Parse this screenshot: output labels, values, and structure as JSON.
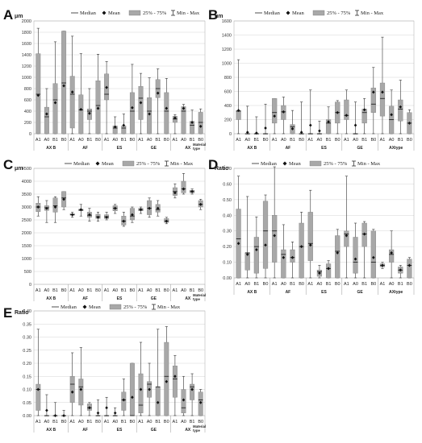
{
  "legend": {
    "median": "Median",
    "mean": "Mean",
    "iqr": "25% - 75%",
    "minmax": "Min - Max"
  },
  "chart_data": [
    {
      "id": "A",
      "label": "A",
      "type": "boxplot",
      "ylabel": "μm",
      "ylim": [
        0,
        2000
      ],
      "yticks": [
        0,
        200,
        400,
        600,
        800,
        1000,
        1200,
        1400,
        1600,
        1800,
        2000
      ],
      "tick_decimals": 0,
      "categories": [
        "A1",
        "A0",
        "B1",
        "B0",
        "A1",
        "A0",
        "B1",
        "B0",
        "A1",
        "A0",
        "B1",
        "B0",
        "A1",
        "A0",
        "B1",
        "B0",
        "A1",
        "A0",
        "B1",
        "B0"
      ],
      "groups": [
        "AX B",
        "AF",
        "ES",
        "GE",
        "AX"
      ],
      "group_extra": "Material type",
      "boxes": [
        {
          "min": 0,
          "q1": 0,
          "median": 700,
          "q3": 1420,
          "max": 1870,
          "mean": 680
        },
        {
          "min": 0,
          "q1": 0,
          "median": 300,
          "q3": 470,
          "max": 800,
          "mean": 350
        },
        {
          "min": 0,
          "q1": 0,
          "median": 600,
          "q3": 890,
          "max": 1630,
          "mean": 550
        },
        {
          "min": 0,
          "q1": 0,
          "median": 900,
          "q3": 1820,
          "max": 1820,
          "mean": 850
        },
        {
          "min": 0,
          "q1": 100,
          "median": 700,
          "q3": 1020,
          "max": 1730,
          "mean": 740
        },
        {
          "min": 0,
          "q1": 0,
          "median": 420,
          "q3": 690,
          "max": 1420,
          "mean": 430
        },
        {
          "min": 0,
          "q1": 250,
          "median": 400,
          "q3": 440,
          "max": 800,
          "mean": 360
        },
        {
          "min": 0,
          "q1": 0,
          "median": 500,
          "q3": 940,
          "max": 1410,
          "mean": 450
        },
        {
          "min": 0,
          "q1": 600,
          "median": 700,
          "q3": 1060,
          "max": 1280,
          "mean": 820
        },
        {
          "min": 0,
          "q1": 0,
          "median": 100,
          "q3": 140,
          "max": 300,
          "mean": 120
        },
        {
          "min": 0,
          "q1": 0,
          "median": 100,
          "q3": 140,
          "max": 350,
          "mean": 150
        },
        {
          "min": 0,
          "q1": 0,
          "median": 400,
          "q3": 730,
          "max": 1230,
          "mean": 460
        },
        {
          "min": 0,
          "q1": 250,
          "median": 630,
          "q3": 840,
          "max": 1070,
          "mean": 550
        },
        {
          "min": 0,
          "q1": 0,
          "median": 400,
          "q3": 640,
          "max": 990,
          "mean": 350
        },
        {
          "min": 0,
          "q1": 640,
          "median": 800,
          "q3": 960,
          "max": 1150,
          "mean": 720
        },
        {
          "min": 0,
          "q1": 0,
          "median": 400,
          "q3": 730,
          "max": 980,
          "mean": 450
        },
        {
          "min": 0,
          "q1": 200,
          "median": 260,
          "q3": 310,
          "max": 340,
          "mean": 280
        },
        {
          "min": 0,
          "q1": 0,
          "median": 400,
          "q3": 480,
          "max": 520,
          "mean": 450
        },
        {
          "min": 0,
          "q1": 0,
          "median": 150,
          "q3": 220,
          "max": 420,
          "mean": 200
        },
        {
          "min": 0,
          "q1": 0,
          "median": 200,
          "q3": 380,
          "max": 440,
          "mean": 130
        }
      ]
    },
    {
      "id": "B",
      "label": "B",
      "type": "boxplot",
      "ylabel": "μm",
      "ylim": [
        0,
        1600
      ],
      "yticks": [
        0,
        200,
        400,
        600,
        800,
        1000,
        1200,
        1400,
        1600
      ],
      "tick_decimals": 0,
      "categories": [
        "A1",
        "A0",
        "B1",
        "B0",
        "A1",
        "A0",
        "B1",
        "B0",
        "A1",
        "A0",
        "B1",
        "B0",
        "A1",
        "A0",
        "B1",
        "B0",
        "A1",
        "A0",
        "B1",
        "B0"
      ],
      "groups": [
        "AX B",
        "AF",
        "ES",
        "GE",
        "AXtype"
      ],
      "group_extra": "",
      "boxes": [
        {
          "min": 0,
          "q1": 200,
          "median": 320,
          "q3": 330,
          "max": 1050,
          "mean": 330
        },
        {
          "min": 0,
          "q1": 0,
          "median": 0,
          "q3": 0,
          "max": 390,
          "mean": 20
        },
        {
          "min": 0,
          "q1": 0,
          "median": 0,
          "q3": 0,
          "max": 240,
          "mean": 10
        },
        {
          "min": 0,
          "q1": 0,
          "median": 0,
          "q3": 0,
          "max": 420,
          "mean": 80
        },
        {
          "min": 0,
          "q1": 150,
          "median": 300,
          "q3": 500,
          "max": 500,
          "mean": 250
        },
        {
          "min": 0,
          "q1": 200,
          "median": 310,
          "q3": 400,
          "max": 520,
          "mean": 310
        },
        {
          "min": 0,
          "q1": 0,
          "median": 100,
          "q3": 130,
          "max": 330,
          "mean": 70
        },
        {
          "min": 0,
          "q1": 0,
          "median": 0,
          "q3": 0,
          "max": 450,
          "mean": 20
        },
        {
          "min": 0,
          "q1": 0,
          "median": 0,
          "q3": 0,
          "max": 620,
          "mean": 120
        },
        {
          "min": 0,
          "q1": 0,
          "median": 0,
          "q3": 0,
          "max": 180,
          "mean": 40
        },
        {
          "min": 0,
          "q1": 0,
          "median": 150,
          "q3": 200,
          "max": 380,
          "mean": 170
        },
        {
          "min": 0,
          "q1": 150,
          "median": 300,
          "q3": 450,
          "max": 470,
          "mean": 300
        },
        {
          "min": 0,
          "q1": 200,
          "median": 260,
          "q3": 480,
          "max": 620,
          "mean": 260
        },
        {
          "min": 0,
          "q1": 0,
          "median": 0,
          "q3": 0,
          "max": 450,
          "mean": 120
        },
        {
          "min": 0,
          "q1": 150,
          "median": 300,
          "q3": 350,
          "max": 500,
          "mean": 340
        },
        {
          "min": 0,
          "q1": 300,
          "median": 420,
          "q3": 650,
          "max": 940,
          "mean": 590
        },
        {
          "min": 0,
          "q1": 250,
          "median": 500,
          "q3": 720,
          "max": 1370,
          "mean": 590
        },
        {
          "min": 0,
          "q1": 0,
          "median": 200,
          "q3": 390,
          "max": 620,
          "mean": 270
        },
        {
          "min": 0,
          "q1": 180,
          "median": 350,
          "q3": 480,
          "max": 760,
          "mean": 380
        },
        {
          "min": 0,
          "q1": 0,
          "median": 150,
          "q3": 300,
          "max": 340,
          "mean": 150
        }
      ]
    },
    {
      "id": "C",
      "label": "C",
      "type": "boxplot",
      "ylabel": "μm",
      "ylim": [
        0,
        4500
      ],
      "yticks": [
        0,
        500,
        1000,
        1500,
        2000,
        2500,
        3000,
        3500,
        4000,
        4500
      ],
      "tick_decimals": 0,
      "categories": [
        "A1",
        "A0",
        "B1",
        "B0",
        "A1",
        "A0",
        "B1",
        "B0",
        "A1",
        "A0",
        "B1",
        "B0",
        "A1",
        "A0",
        "B1",
        "B0",
        "A1",
        "A0",
        "B1",
        "B0"
      ],
      "groups": [
        "AX B",
        "AF",
        "ES",
        "GE",
        "AX"
      ],
      "group_extra": "Material type",
      "boxes": [
        {
          "min": 2650,
          "q1": 2820,
          "median": 3000,
          "q3": 3150,
          "max": 3400,
          "mean": 3000
        },
        {
          "min": 2400,
          "q1": 2870,
          "median": 2970,
          "q3": 3050,
          "max": 3250,
          "mean": 2950
        },
        {
          "min": 2400,
          "q1": 2800,
          "median": 3050,
          "q3": 3350,
          "max": 3400,
          "mean": 3000
        },
        {
          "min": 2900,
          "q1": 3000,
          "median": 3350,
          "q3": 3600,
          "max": 3600,
          "mean": 3300
        },
        {
          "min": 2600,
          "q1": 2680,
          "median": 2700,
          "q3": 2740,
          "max": 2800,
          "mean": 2700
        },
        {
          "min": 2650,
          "q1": 2850,
          "median": 2880,
          "q3": 2920,
          "max": 3100,
          "mean": 2900
        },
        {
          "min": 2450,
          "q1": 2600,
          "median": 2680,
          "q3": 2800,
          "max": 2950,
          "mean": 2700
        },
        {
          "min": 2450,
          "q1": 2550,
          "median": 2620,
          "q3": 2720,
          "max": 2800,
          "mean": 2600
        },
        {
          "min": 2500,
          "q1": 2550,
          "median": 2620,
          "q3": 2700,
          "max": 2800,
          "mean": 2600
        },
        {
          "min": 2750,
          "q1": 2850,
          "median": 2950,
          "q3": 3050,
          "max": 3100,
          "mean": 2950
        },
        {
          "min": 2250,
          "q1": 2300,
          "median": 2450,
          "q3": 2650,
          "max": 2800,
          "mean": 2450
        },
        {
          "min": 2400,
          "q1": 2500,
          "median": 2650,
          "q3": 2950,
          "max": 3000,
          "mean": 2700
        },
        {
          "min": 2750,
          "q1": 2850,
          "median": 2900,
          "q3": 2950,
          "max": 3000,
          "mean": 2900
        },
        {
          "min": 2600,
          "q1": 2700,
          "median": 2950,
          "q3": 3250,
          "max": 3350,
          "mean": 2950
        },
        {
          "min": 2650,
          "q1": 2800,
          "median": 2900,
          "q3": 3100,
          "max": 3250,
          "mean": 2950
        },
        {
          "min": 2350,
          "q1": 2400,
          "median": 2450,
          "q3": 2550,
          "max": 2600,
          "mean": 2450
        },
        {
          "min": 3350,
          "q1": 3450,
          "median": 3600,
          "q3": 3750,
          "max": 3900,
          "mean": 3550
        },
        {
          "min": 3500,
          "q1": 3550,
          "median": 3700,
          "q3": 4000,
          "max": 4300,
          "mean": 3700
        },
        {
          "min": 3500,
          "q1": 3550,
          "median": 3600,
          "q3": 3650,
          "max": 3700,
          "mean": 3600
        },
        {
          "min": 2900,
          "q1": 3000,
          "median": 3100,
          "q3": 3250,
          "max": 3300,
          "mean": 3100
        }
      ]
    },
    {
      "id": "D",
      "label": "D",
      "type": "boxplot",
      "ylabel": "Ratio",
      "ylim": [
        0,
        0.7
      ],
      "yticks": [
        0,
        0.1,
        0.2,
        0.3,
        0.4,
        0.5,
        0.6,
        0.7
      ],
      "tick_decimals": 2,
      "categories": [
        "A1",
        "A0",
        "B1",
        "B0",
        "A1",
        "A0",
        "B1",
        "B0",
        "A1",
        "A0",
        "B1",
        "B0",
        "A1",
        "A0",
        "B1",
        "B0",
        "A1",
        "A0",
        "B1",
        "B0"
      ],
      "groups": [
        "AX B",
        "AF",
        "ES",
        "GE",
        "AXtype"
      ],
      "group_extra": "",
      "boxes": [
        {
          "min": 0,
          "q1": 0,
          "median": 0.25,
          "q3": 0.44,
          "max": 0.65,
          "mean": 0.22
        },
        {
          "min": 0,
          "q1": 0.05,
          "median": 0.16,
          "q3": 0.16,
          "max": 0.52,
          "mean": 0.15
        },
        {
          "min": 0,
          "q1": 0.03,
          "median": 0.2,
          "q3": 0.26,
          "max": 0.39,
          "mean": 0.18
        },
        {
          "min": 0,
          "q1": 0.06,
          "median": 0.3,
          "q3": 0.49,
          "max": 0.53,
          "mean": 0.21
        },
        {
          "min": 0,
          "q1": 0.1,
          "median": 0.3,
          "q3": 0.4,
          "max": 0.71,
          "mean": 0.27
        },
        {
          "min": 0,
          "q1": 0,
          "median": 0.15,
          "q3": 0.18,
          "max": 0.34,
          "mean": 0.13
        },
        {
          "min": 0,
          "q1": 0.1,
          "median": 0.13,
          "q3": 0.18,
          "max": 0.23,
          "mean": 0.13
        },
        {
          "min": 0,
          "q1": 0,
          "median": 0.2,
          "q3": 0.35,
          "max": 0.42,
          "mean": 0.2
        },
        {
          "min": 0,
          "q1": 0.11,
          "median": 0.22,
          "q3": 0.42,
          "max": 0.56,
          "mean": 0.21
        },
        {
          "min": 0,
          "q1": 0.01,
          "median": 0.04,
          "q3": 0.05,
          "max": 0.08,
          "mean": 0.03
        },
        {
          "min": 0,
          "q1": 0,
          "median": 0.06,
          "q3": 0.09,
          "max": 0.11,
          "mean": 0.06
        },
        {
          "min": 0,
          "q1": 0,
          "median": 0.17,
          "q3": 0.27,
          "max": 0.31,
          "mean": 0.16
        },
        {
          "min": 0,
          "q1": 0.2,
          "median": 0.28,
          "q3": 0.3,
          "max": 0.65,
          "mean": 0.27
        },
        {
          "min": 0,
          "q1": 0.03,
          "median": 0.1,
          "q3": 0.26,
          "max": 0.35,
          "mean": 0.12
        },
        {
          "min": 0,
          "q1": 0.2,
          "median": 0.28,
          "q3": 0.35,
          "max": 0.36,
          "mean": 0.28
        },
        {
          "min": 0,
          "q1": 0,
          "median": 0.1,
          "q3": 0.3,
          "max": 0.31,
          "mean": 0.13
        },
        {
          "min": 0.06,
          "q1": 0.07,
          "median": 0.08,
          "q3": 0.09,
          "max": 0.1,
          "mean": 0.08
        },
        {
          "min": 0,
          "q1": 0.1,
          "median": 0.15,
          "q3": 0.18,
          "max": 0.3,
          "mean": 0.16
        },
        {
          "min": 0,
          "q1": 0.03,
          "median": 0.05,
          "q3": 0.07,
          "max": 0.08,
          "mean": 0.05
        },
        {
          "min": 0,
          "q1": 0,
          "median": 0.08,
          "q3": 0.12,
          "max": 0.13,
          "mean": 0.08
        }
      ]
    },
    {
      "id": "E",
      "label": "E",
      "type": "boxplot",
      "ylabel": "Ratio",
      "ylim": [
        0,
        0.4
      ],
      "yticks": [
        0,
        0.05,
        0.1,
        0.15,
        0.2,
        0.25,
        0.3,
        0.35,
        0.4
      ],
      "tick_decimals": 2,
      "categories": [
        "A1",
        "A0",
        "B1",
        "B0",
        "A1",
        "A0",
        "B1",
        "B0",
        "A1",
        "A0",
        "B1",
        "B0",
        "A1",
        "A0",
        "B1",
        "B0",
        "A1",
        "A0",
        "B1",
        "B0"
      ],
      "groups": [
        "AX B",
        "AF",
        "ES",
        "GE",
        "AX"
      ],
      "group_extra": "Material type",
      "boxes": [
        {
          "min": 0,
          "q1": 0.02,
          "median": 0.1,
          "q3": 0.12,
          "max": 0.33,
          "mean": 0.1
        },
        {
          "min": 0,
          "q1": 0,
          "median": 0,
          "q3": 0,
          "max": 0.08,
          "mean": 0.02
        },
        {
          "min": 0,
          "q1": 0,
          "median": 0,
          "q3": 0,
          "max": 0.05,
          "mean": 0
        },
        {
          "min": 0,
          "q1": 0,
          "median": 0,
          "q3": 0,
          "max": 0.02,
          "mean": 0
        },
        {
          "min": 0,
          "q1": 0.05,
          "median": 0.12,
          "q3": 0.15,
          "max": 0.24,
          "mean": 0.09
        },
        {
          "min": 0,
          "q1": 0.04,
          "median": 0.11,
          "q3": 0.14,
          "max": 0.26,
          "mean": 0.1
        },
        {
          "min": 0,
          "q1": 0.02,
          "median": 0.03,
          "q3": 0.045,
          "max": 0.05,
          "mean": 0.03
        },
        {
          "min": 0,
          "q1": 0,
          "median": 0,
          "q3": 0,
          "max": 0.06,
          "mean": 0.01
        },
        {
          "min": 0,
          "q1": 0,
          "median": 0,
          "q3": 0,
          "max": 0.07,
          "mean": 0.03
        },
        {
          "min": 0,
          "q1": 0,
          "median": 0,
          "q3": 0,
          "max": 0.03,
          "mean": 0.01
        },
        {
          "min": 0,
          "q1": 0.02,
          "median": 0.06,
          "q3": 0.09,
          "max": 0.14,
          "mean": 0.06
        },
        {
          "min": 0,
          "q1": 0,
          "median": 0,
          "q3": 0.2,
          "max": 0.2,
          "mean": 0.07
        },
        {
          "min": 0,
          "q1": 0.01,
          "median": 0.04,
          "q3": 0.16,
          "max": 0.28,
          "mean": 0.1
        },
        {
          "min": 0,
          "q1": 0.07,
          "median": 0.12,
          "q3": 0.13,
          "max": 0.2,
          "mean": 0.1
        },
        {
          "min": 0,
          "q1": 0,
          "median": 0.11,
          "q3": 0.11,
          "max": 0.33,
          "mean": 0.05
        },
        {
          "min": 0,
          "q1": 0,
          "median": 0.15,
          "q3": 0.28,
          "max": 0.34,
          "mean": 0.13
        },
        {
          "min": 0,
          "q1": 0.07,
          "median": 0.14,
          "q3": 0.19,
          "max": 0.23,
          "mean": 0.15
        },
        {
          "min": 0,
          "q1": 0.01,
          "median": 0.03,
          "q3": 0.1,
          "max": 0.15,
          "mean": 0.06
        },
        {
          "min": 0,
          "q1": 0.06,
          "median": 0.11,
          "q3": 0.12,
          "max": 0.16,
          "mean": 0.1
        },
        {
          "min": 0,
          "q1": 0,
          "median": 0.06,
          "q3": 0.09,
          "max": 0.1,
          "mean": 0.05
        }
      ]
    }
  ]
}
